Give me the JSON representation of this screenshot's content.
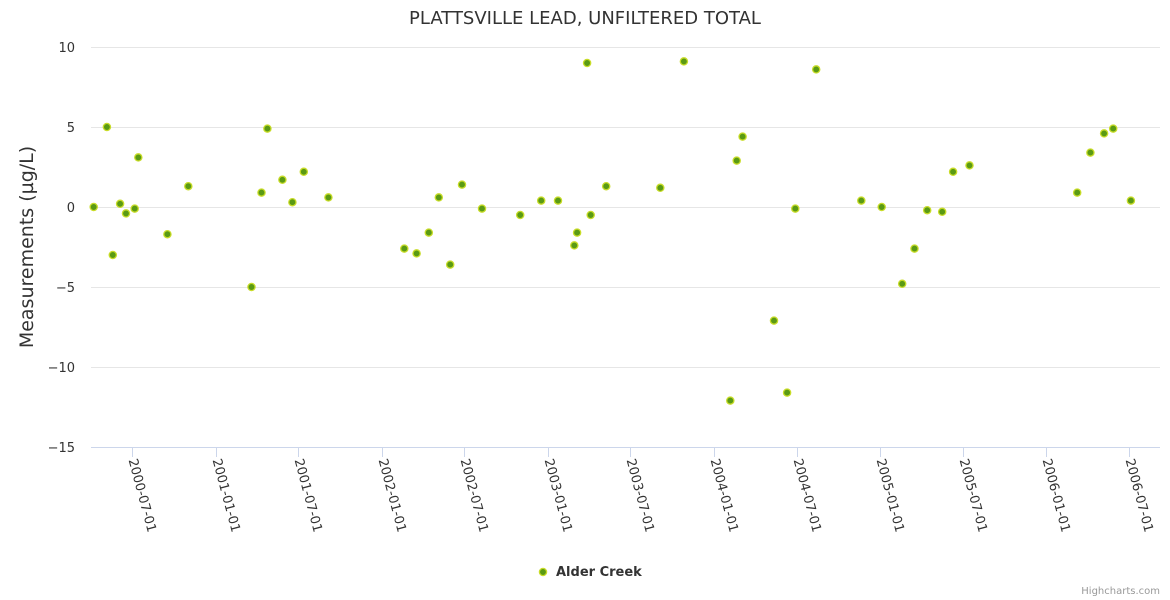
{
  "chart_data": {
    "type": "scatter",
    "title": "PLATTSVILLE LEAD, UNFILTERED TOTAL",
    "ylabel": "Measurements (µg/L)",
    "xlabel": "",
    "ylim": [
      -15,
      10
    ],
    "yticks": [
      10,
      5,
      0,
      -5,
      -10,
      -15
    ],
    "xlim": [
      "2000-04-01",
      "2006-09-08"
    ],
    "xticks": [
      "2000-07-01",
      "2001-01-01",
      "2001-07-01",
      "2002-01-01",
      "2002-07-01",
      "2003-01-01",
      "2003-07-01",
      "2004-01-01",
      "2004-07-01",
      "2005-01-01",
      "2005-07-01",
      "2006-01-01",
      "2006-07-01"
    ],
    "grid": true,
    "legend": "bottom-center",
    "series": [
      {
        "name": "Alder Creek",
        "color": "#5a9a14",
        "points": [
          [
            "2000-04-07",
            0.0
          ],
          [
            "2000-05-06",
            5.0
          ],
          [
            "2000-05-19",
            -3.0
          ],
          [
            "2000-06-04",
            0.2
          ],
          [
            "2000-06-17",
            -0.4
          ],
          [
            "2000-07-06",
            -0.1
          ],
          [
            "2000-07-14",
            3.1
          ],
          [
            "2000-09-16",
            -1.7
          ],
          [
            "2000-11-01",
            1.3
          ],
          [
            "2001-03-20",
            -5.0
          ],
          [
            "2001-04-11",
            0.9
          ],
          [
            "2001-04-24",
            4.9
          ],
          [
            "2001-05-27",
            1.7
          ],
          [
            "2001-06-18",
            0.3
          ],
          [
            "2001-07-13",
            2.2
          ],
          [
            "2001-09-05",
            0.6
          ],
          [
            "2002-02-19",
            -2.6
          ],
          [
            "2002-03-18",
            -2.9
          ],
          [
            "2002-04-14",
            -1.6
          ],
          [
            "2002-05-06",
            0.6
          ],
          [
            "2002-05-31",
            -3.6
          ],
          [
            "2002-06-26",
            1.4
          ],
          [
            "2002-08-09",
            -0.1
          ],
          [
            "2002-11-01",
            -0.5
          ],
          [
            "2002-12-17",
            0.4
          ],
          [
            "2003-01-23",
            0.4
          ],
          [
            "2003-02-28",
            -2.4
          ],
          [
            "2003-03-06",
            -1.6
          ],
          [
            "2003-03-28",
            9.0
          ],
          [
            "2003-04-05",
            -0.5
          ],
          [
            "2003-05-09",
            1.3
          ],
          [
            "2003-09-05",
            1.2
          ],
          [
            "2003-10-27",
            9.1
          ],
          [
            "2004-02-06",
            -12.1
          ],
          [
            "2004-02-20",
            2.9
          ],
          [
            "2004-03-04",
            4.4
          ],
          [
            "2004-05-12",
            -7.1
          ],
          [
            "2004-06-10",
            -11.6
          ],
          [
            "2004-06-28",
            -0.1
          ],
          [
            "2004-08-13",
            8.6
          ],
          [
            "2004-11-20",
            0.4
          ],
          [
            "2005-01-04",
            0.0
          ],
          [
            "2005-02-18",
            -4.8
          ],
          [
            "2005-03-17",
            -2.6
          ],
          [
            "2005-04-14",
            -0.2
          ],
          [
            "2005-05-17",
            -0.3
          ],
          [
            "2005-06-10",
            2.2
          ],
          [
            "2005-07-16",
            2.6
          ],
          [
            "2006-03-10",
            0.9
          ],
          [
            "2006-04-08",
            3.4
          ],
          [
            "2006-05-08",
            4.6
          ],
          [
            "2006-05-28",
            4.9
          ],
          [
            "2006-07-06",
            0.4
          ]
        ]
      }
    ],
    "credits": "Highcharts.com"
  }
}
